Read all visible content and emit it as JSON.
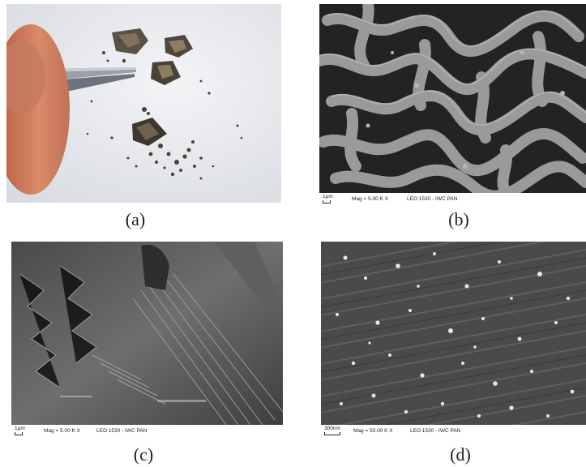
{
  "panels": {
    "a": {
      "caption": "(a)"
    },
    "b": {
      "caption": "(b)",
      "scale_label": "1µm",
      "mag_label": "Mag =  5.00 K X",
      "instrument_label": "LEO 1530 - IWC PAN"
    },
    "c": {
      "caption": "(c)",
      "scale_label": "1µm",
      "mag_label": "Mag =  5.00 K X",
      "instrument_label": "LEO 1530 - IWC PAN"
    },
    "d": {
      "caption": "(d)",
      "scale_label": "300nm",
      "mag_label": "Mag =  50.00 K X",
      "instrument_label": "LEO 1530 - IWC PAN"
    }
  }
}
